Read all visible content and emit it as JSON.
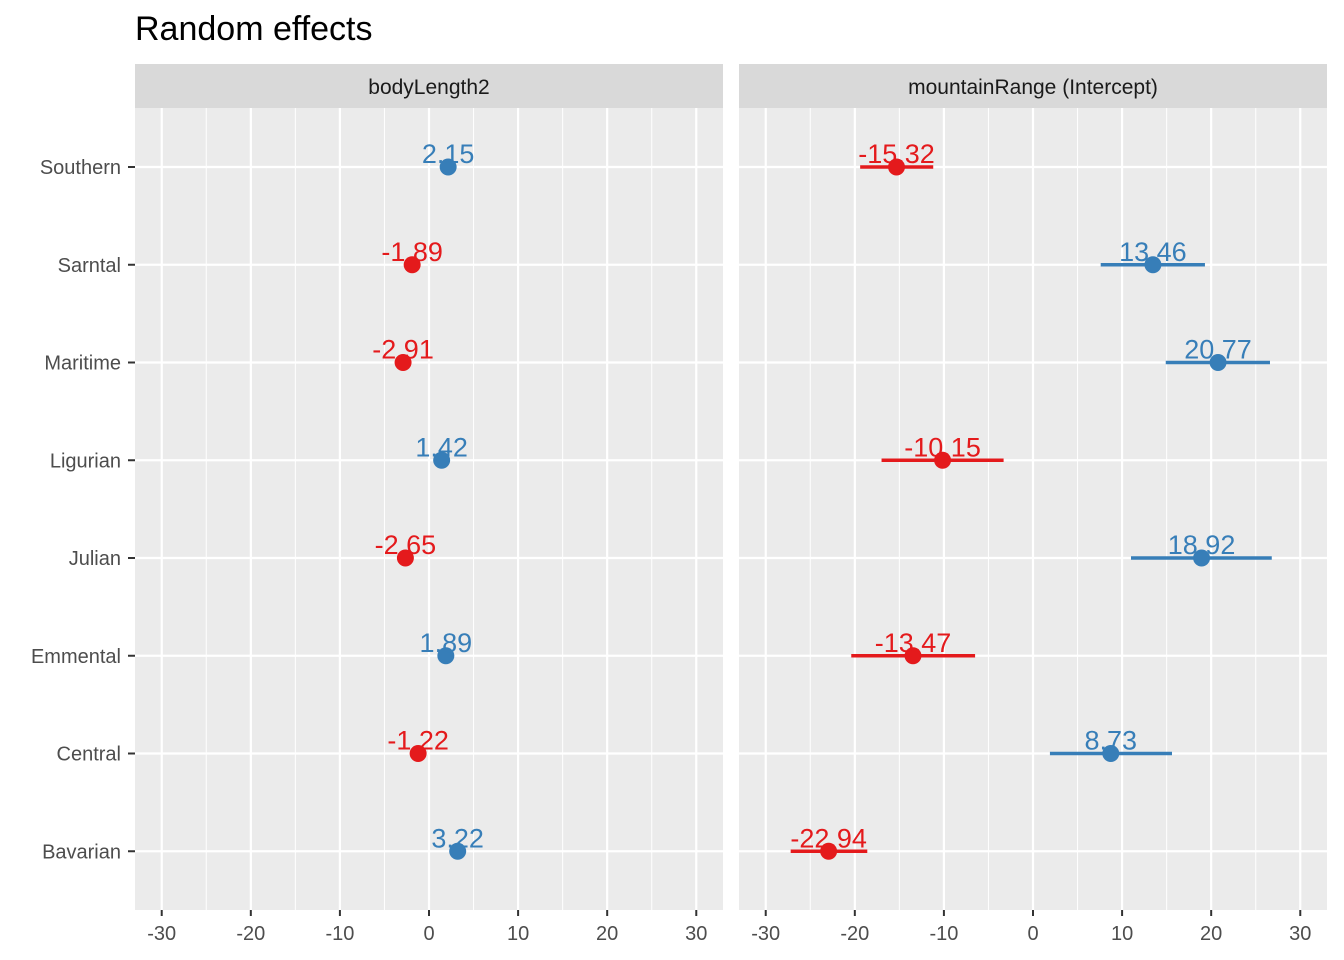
{
  "title": "Random effects",
  "chart_data": {
    "type": "dot-errorbar",
    "title": "Random effects",
    "xlim": [
      -33,
      33
    ],
    "x_ticks": [
      -30,
      -20,
      -10,
      0,
      10,
      20,
      30
    ],
    "x_tick_labels": [
      "-30",
      "-20",
      "-10",
      "0",
      "10",
      "20",
      "30"
    ],
    "categories": [
      "Southern",
      "Sarntal",
      "Maritime",
      "Ligurian",
      "Julian",
      "Emmental",
      "Central",
      "Bavarian"
    ],
    "grid": true,
    "colors": {
      "positive": "#377EB8",
      "negative": "#E41A1C"
    },
    "panels": [
      {
        "name": "bodyLength2",
        "points": [
          {
            "category": "Southern",
            "value": 2.15,
            "label": "2.15",
            "lower": 2.15,
            "upper": 2.15
          },
          {
            "category": "Sarntal",
            "value": -1.89,
            "label": "-1.89",
            "lower": -1.89,
            "upper": -1.89
          },
          {
            "category": "Maritime",
            "value": -2.91,
            "label": "-2.91",
            "lower": -2.91,
            "upper": -2.91
          },
          {
            "category": "Ligurian",
            "value": 1.42,
            "label": "1.42",
            "lower": 1.42,
            "upper": 1.42
          },
          {
            "category": "Julian",
            "value": -2.65,
            "label": "-2.65",
            "lower": -2.65,
            "upper": -2.65
          },
          {
            "category": "Emmental",
            "value": 1.89,
            "label": "1.89",
            "lower": 1.89,
            "upper": 1.89
          },
          {
            "category": "Central",
            "value": -1.22,
            "label": "-1.22",
            "lower": -1.22,
            "upper": -1.22
          },
          {
            "category": "Bavarian",
            "value": 3.22,
            "label": "3.22",
            "lower": 3.22,
            "upper": 3.22
          }
        ]
      },
      {
        "name": "mountainRange (Intercept)",
        "points": [
          {
            "category": "Southern",
            "value": -15.32,
            "label": "-15.32",
            "lower": -19.4,
            "upper": -11.2
          },
          {
            "category": "Sarntal",
            "value": 13.46,
            "label": "13.46",
            "lower": 7.6,
            "upper": 19.3
          },
          {
            "category": "Maritime",
            "value": 20.77,
            "label": "20.77",
            "lower": 14.9,
            "upper": 26.6
          },
          {
            "category": "Ligurian",
            "value": -10.15,
            "label": "-10.15",
            "lower": -17.0,
            "upper": -3.3
          },
          {
            "category": "Julian",
            "value": 18.92,
            "label": "18.92",
            "lower": 11.0,
            "upper": 26.8
          },
          {
            "category": "Emmental",
            "value": -13.47,
            "label": "-13.47",
            "lower": -20.4,
            "upper": -6.5
          },
          {
            "category": "Central",
            "value": 8.73,
            "label": "8.73",
            "lower": 1.9,
            "upper": 15.6
          },
          {
            "category": "Bavarian",
            "value": -22.94,
            "label": "-22.94",
            "lower": -27.2,
            "upper": -18.6
          }
        ]
      }
    ]
  }
}
